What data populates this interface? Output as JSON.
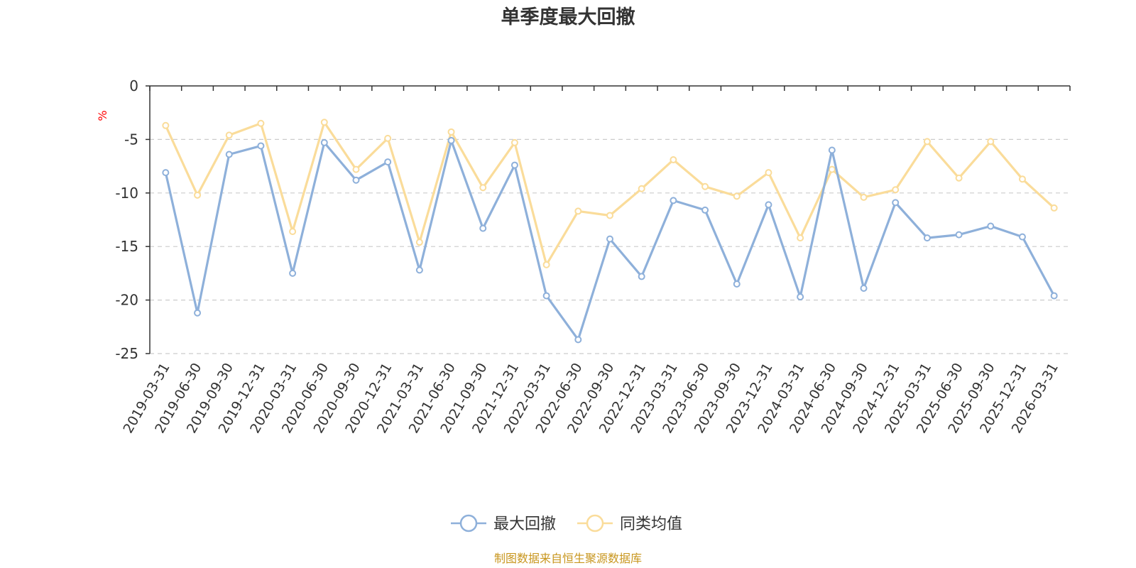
{
  "chart_data": {
    "type": "line",
    "title": "单季度最大回撤",
    "ylabel": "%",
    "ylim": [
      -25,
      0
    ],
    "yticks": [
      0,
      -5,
      -10,
      -15,
      -20,
      -25
    ],
    "grid": true,
    "legend_position": "bottom",
    "categories": [
      "2019-03-31",
      "2019-06-30",
      "2019-09-30",
      "2019-12-31",
      "2020-03-31",
      "2020-06-30",
      "2020-09-30",
      "2020-12-31",
      "2021-03-31",
      "2021-06-30",
      "2021-09-30",
      "2021-12-31",
      "2022-03-31",
      "2022-06-30",
      "2022-09-30",
      "2022-12-31",
      "2023-03-31",
      "2023-06-30",
      "2023-09-30",
      "2023-12-31",
      "2024-03-31",
      "2024-06-30",
      "2024-09-30",
      "2024-12-31",
      "2025-03-31",
      "2025-06-30",
      "2025-09-30",
      "2025-12-31",
      "2026-03-31"
    ],
    "series": [
      {
        "name": "最大回撤",
        "color": "#8eb0da",
        "values": [
          -8.1,
          -21.2,
          -6.4,
          -5.6,
          -17.5,
          -5.3,
          -8.8,
          -7.1,
          -17.2,
          -5.1,
          -13.3,
          -7.4,
          -19.6,
          -23.7,
          -14.3,
          -17.8,
          -10.7,
          -11.6,
          -18.5,
          -11.1,
          -19.7,
          -6.0,
          -18.9,
          -10.9,
          -14.2,
          -13.9,
          -13.1,
          -14.1,
          -19.6
        ]
      },
      {
        "name": "同类均值",
        "color": "#fadc9a",
        "values": [
          -3.7,
          -10.2,
          -4.6,
          -3.5,
          -13.6,
          -3.4,
          -7.8,
          -4.9,
          -14.6,
          -4.3,
          -9.5,
          -5.3,
          -16.7,
          -11.7,
          -12.1,
          -9.6,
          -6.9,
          -9.4,
          -10.3,
          -8.1,
          -14.2,
          -7.8,
          -10.4,
          -9.7,
          -5.2,
          -8.6,
          -5.2,
          -8.7,
          -11.4
        ]
      }
    ]
  },
  "footer": {
    "source": "制图数据来自恒生聚源数据库"
  }
}
